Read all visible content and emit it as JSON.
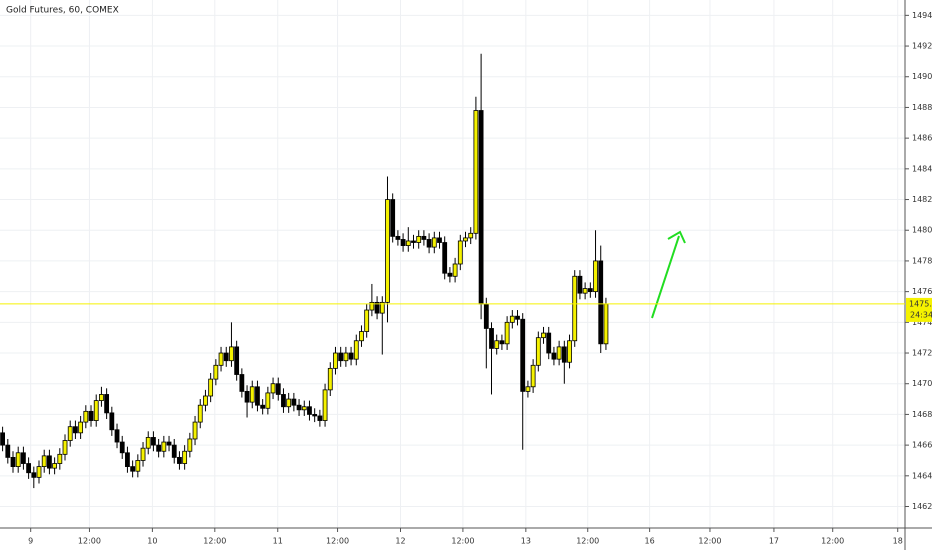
{
  "chart_data": {
    "type": "candlestick",
    "title": "Gold Futures, 60, COMEX",
    "up_color": "#f5f200",
    "down_color": "#000000",
    "grid": true,
    "ylim": [
      1460.6,
      1495
    ],
    "xlim": [
      -0.5,
      173.5
    ],
    "yticks": [
      {
        "value": 1462,
        "label": "1462.0"
      },
      {
        "value": 1464,
        "label": "1464.0"
      },
      {
        "value": 1466,
        "label": "1466.0"
      },
      {
        "value": 1468,
        "label": "1468.0"
      },
      {
        "value": 1470,
        "label": "1470.0"
      },
      {
        "value": 1472,
        "label": "1472.0"
      },
      {
        "value": 1474,
        "label": "1474.0"
      },
      {
        "value": 1476,
        "label": "1476.0"
      },
      {
        "value": 1478,
        "label": "1478.0"
      },
      {
        "value": 1480,
        "label": "1480.0"
      },
      {
        "value": 1482,
        "label": "1482.0"
      },
      {
        "value": 1484,
        "label": "1484.0"
      },
      {
        "value": 1486,
        "label": "1486.0"
      },
      {
        "value": 1488,
        "label": "1488.0"
      },
      {
        "value": 1490,
        "label": "1490.0"
      },
      {
        "value": 1492,
        "label": "1492.0"
      },
      {
        "value": 1494,
        "label": "1494.0"
      }
    ],
    "xticks": [
      {
        "value": 5.4,
        "label": "9"
      },
      {
        "value": 16.7,
        "label": "12:00"
      },
      {
        "value": 28.8,
        "label": "10"
      },
      {
        "value": 40.8,
        "label": "12:00"
      },
      {
        "value": 52.9,
        "label": "11"
      },
      {
        "value": 64.4,
        "label": "12:00"
      },
      {
        "value": 76.5,
        "label": "12"
      },
      {
        "value": 88.5,
        "label": "12:00"
      },
      {
        "value": 100.6,
        "label": "13"
      },
      {
        "value": 112.5,
        "label": "12:00"
      },
      {
        "value": 124.4,
        "label": "16"
      },
      {
        "value": 136,
        "label": "12:00"
      },
      {
        "value": 148.3,
        "label": "17"
      },
      {
        "value": 159.6,
        "label": "12:00"
      },
      {
        "value": 172.1,
        "label": "18"
      }
    ],
    "last_price": 1475.2,
    "countdown": "24:34",
    "open": [
      1466.8,
      1466.0,
      1465.2,
      1464.6,
      1465.5,
      1464.8,
      1464.2,
      1463.9,
      1464.6,
      1465.3,
      1464.5,
      1464.8,
      1465.4,
      1466.3,
      1467.2,
      1466.8,
      1467.5,
      1468.2,
      1467.6,
      1468.9,
      1469.3,
      1468.1,
      1467.0,
      1466.2,
      1465.5,
      1464.6,
      1464.3,
      1465.0,
      1465.8,
      1466.5,
      1466.0,
      1465.6,
      1466.2,
      1466.0,
      1465.2,
      1464.8,
      1465.6,
      1466.4,
      1467.5,
      1468.6,
      1469.2,
      1470.3,
      1471.2,
      1472.0,
      1471.5,
      1472.4,
      1470.6,
      1469.5,
      1468.8,
      1469.8,
      1468.6,
      1468.4,
      1469.4,
      1470.0,
      1469.3,
      1468.5,
      1469.0,
      1468.6,
      1468.3,
      1468.5,
      1468.0,
      1467.9,
      1467.6,
      1469.6,
      1471.0,
      1472.0,
      1471.5,
      1472.0,
      1471.6,
      1472.8,
      1473.4,
      1474.8,
      1475.3,
      1474.6,
      1475.3,
      1482.0,
      1479.6,
      1479.4,
      1479.0,
      1479.3,
      1479.2,
      1479.6,
      1479.4,
      1478.9,
      1479.5,
      1479.2,
      1477.2,
      1477.0,
      1477.8,
      1479.3,
      1479.5,
      1479.8,
      1487.8,
      1475.2,
      1473.6,
      1472.3,
      1472.8,
      1472.6,
      1474.0,
      1474.4,
      1474.2,
      1469.5,
      1469.8,
      1471.2,
      1473.0,
      1473.3,
      1472.0,
      1471.6,
      1472.4,
      1471.4,
      1472.8,
      1477.0,
      1475.9,
      1476.2,
      1476.0,
      1478.0,
      1472.6
    ],
    "high": [
      1467.2,
      1466.4,
      1465.6,
      1465.9,
      1465.9,
      1465.2,
      1464.6,
      1465.0,
      1465.7,
      1465.7,
      1465.2,
      1465.8,
      1466.7,
      1467.6,
      1467.6,
      1467.9,
      1468.6,
      1468.6,
      1469.3,
      1469.8,
      1469.7,
      1468.5,
      1467.4,
      1466.6,
      1465.9,
      1465.0,
      1465.4,
      1466.2,
      1466.9,
      1466.9,
      1466.4,
      1466.6,
      1466.6,
      1466.4,
      1465.6,
      1466.0,
      1466.8,
      1467.9,
      1469.0,
      1469.6,
      1470.7,
      1471.6,
      1472.4,
      1472.4,
      1474.0,
      1472.8,
      1471.0,
      1469.9,
      1470.2,
      1470.2,
      1469.0,
      1469.8,
      1470.4,
      1470.4,
      1469.7,
      1469.4,
      1469.4,
      1469.0,
      1468.9,
      1468.9,
      1468.4,
      1468.3,
      1470.0,
      1471.4,
      1472.4,
      1472.4,
      1472.4,
      1472.4,
      1473.2,
      1473.8,
      1475.2,
      1476.5,
      1475.7,
      1475.7,
      1483.5,
      1482.4,
      1480.0,
      1479.8,
      1480.2,
      1479.7,
      1480.0,
      1480.0,
      1479.8,
      1479.9,
      1479.9,
      1479.6,
      1477.6,
      1478.2,
      1479.7,
      1479.9,
      1480.2,
      1488.7,
      1491.5,
      1475.6,
      1474.0,
      1473.2,
      1473.2,
      1474.4,
      1474.8,
      1474.8,
      1474.6,
      1470.2,
      1471.6,
      1473.4,
      1473.7,
      1473.7,
      1472.4,
      1472.8,
      1472.8,
      1473.2,
      1477.4,
      1477.4,
      1476.6,
      1476.6,
      1480.0,
      1479.0,
      1475.6
    ],
    "low": [
      1465.6,
      1464.8,
      1464.2,
      1464.2,
      1464.4,
      1463.8,
      1463.2,
      1463.5,
      1464.2,
      1464.1,
      1464.1,
      1464.4,
      1465.0,
      1465.9,
      1466.4,
      1466.4,
      1467.1,
      1467.2,
      1467.2,
      1468.5,
      1467.7,
      1466.6,
      1465.8,
      1465.1,
      1464.2,
      1463.9,
      1463.9,
      1464.6,
      1465.4,
      1465.6,
      1465.2,
      1465.2,
      1465.6,
      1464.8,
      1464.4,
      1464.4,
      1465.2,
      1466.0,
      1467.1,
      1468.2,
      1468.8,
      1469.9,
      1470.8,
      1471.1,
      1471.1,
      1470.2,
      1469.1,
      1467.8,
      1468.4,
      1468.2,
      1468.0,
      1468.0,
      1469.0,
      1468.9,
      1468.1,
      1468.1,
      1468.2,
      1467.9,
      1467.9,
      1467.6,
      1467.5,
      1467.2,
      1467.2,
      1469.2,
      1470.6,
      1471.1,
      1471.1,
      1471.2,
      1471.2,
      1472.4,
      1473.0,
      1474.4,
      1474.2,
      1471.9,
      1474.0,
      1479.2,
      1479.0,
      1478.6,
      1478.6,
      1478.8,
      1478.8,
      1479.0,
      1478.5,
      1478.5,
      1478.8,
      1476.8,
      1476.6,
      1476.6,
      1477.4,
      1478.9,
      1479.1,
      1479.4,
      1474.2,
      1471.0,
      1469.3,
      1471.9,
      1472.2,
      1472.2,
      1473.6,
      1473.8,
      1465.7,
      1469.1,
      1469.4,
      1470.8,
      1472.6,
      1471.6,
      1471.2,
      1471.2,
      1470.0,
      1471.0,
      1472.4,
      1475.5,
      1475.5,
      1475.6,
      1475.6,
      1472.0,
      1472.2
    ],
    "close": [
      1466.0,
      1465.2,
      1464.6,
      1465.5,
      1464.8,
      1464.2,
      1463.9,
      1464.6,
      1465.3,
      1464.5,
      1464.8,
      1465.4,
      1466.3,
      1467.2,
      1466.8,
      1467.5,
      1468.2,
      1467.6,
      1468.9,
      1469.3,
      1468.1,
      1467.0,
      1466.2,
      1465.5,
      1464.6,
      1464.3,
      1465.0,
      1465.8,
      1466.5,
      1466.0,
      1465.6,
      1466.2,
      1466.0,
      1465.2,
      1464.8,
      1465.6,
      1466.4,
      1467.5,
      1468.6,
      1469.2,
      1470.3,
      1471.2,
      1472.0,
      1471.5,
      1472.4,
      1470.6,
      1469.5,
      1468.8,
      1469.8,
      1468.6,
      1468.4,
      1469.4,
      1470.0,
      1469.3,
      1468.5,
      1469.0,
      1468.6,
      1468.3,
      1468.5,
      1468.0,
      1467.9,
      1467.6,
      1469.6,
      1471.0,
      1472.0,
      1471.5,
      1472.0,
      1471.6,
      1472.8,
      1473.4,
      1474.8,
      1475.3,
      1474.6,
      1475.3,
      1482.0,
      1479.6,
      1479.4,
      1479.0,
      1479.3,
      1479.2,
      1479.6,
      1479.4,
      1478.9,
      1479.5,
      1479.2,
      1477.2,
      1477.0,
      1477.8,
      1479.3,
      1479.5,
      1479.8,
      1487.8,
      1475.2,
      1473.6,
      1472.3,
      1472.8,
      1472.6,
      1474.0,
      1474.4,
      1474.2,
      1469.5,
      1469.8,
      1471.2,
      1473.0,
      1473.3,
      1472.0,
      1471.6,
      1472.4,
      1471.4,
      1472.8,
      1477.0,
      1475.9,
      1476.2,
      1476.0,
      1478.0,
      1472.6,
      1475.2
    ]
  }
}
